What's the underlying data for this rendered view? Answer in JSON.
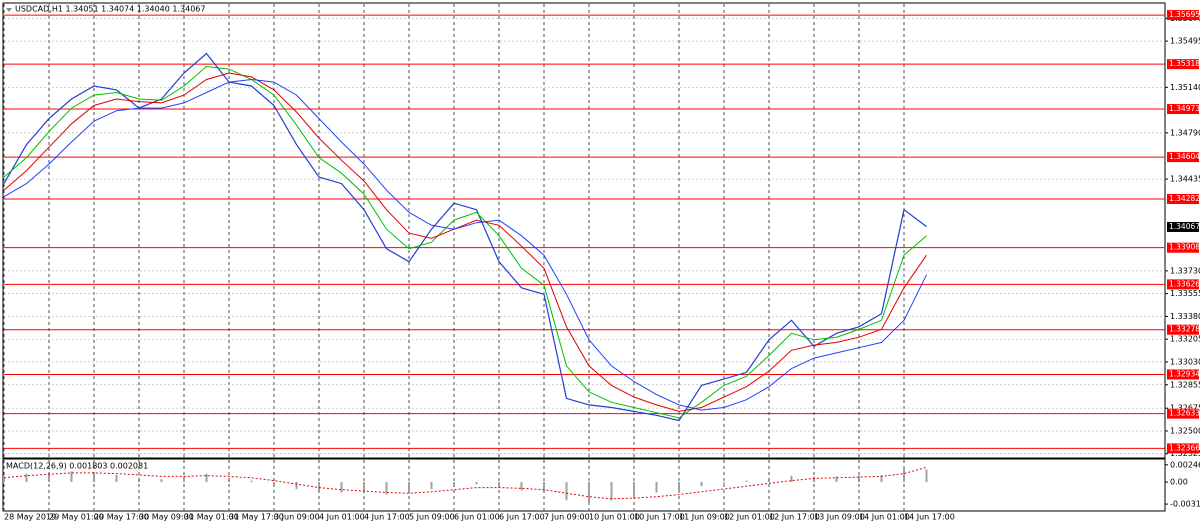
{
  "chart_data": [
    {
      "type": "line",
      "title": "USDCAD,H1  1.34051 1.34074 1.34040 1.34067",
      "categories": [
        "28 May 2019",
        null,
        "29 May 01:00",
        null,
        "29 May 17:00",
        null,
        "30 May 09:00",
        null,
        "31 May 01:00",
        null,
        "31 May 17:00",
        null,
        "3 Jun 09:00",
        null,
        "4 Jun 01:00",
        null,
        "4 Jun 17:00",
        null,
        "5 Jun 09:00",
        null,
        "6 Jun 01:00",
        null,
        "6 Jun 17:00",
        null,
        "7 Jun 09:00",
        null,
        "10 Jun 01:00",
        null,
        "10 Jun 17:00",
        null,
        "11 Jun 09:00",
        null,
        "12 Jun 01:00",
        null,
        "12 Jun 17:00",
        null,
        "13 Jun 09:00",
        null,
        "14 Jun 01:00",
        null,
        "14 Jun 17:00",
        null,
        null,
        null,
        null,
        null,
        null,
        null,
        null,
        null,
        null,
        null
      ],
      "series": [
        {
          "color": "#1f3fd4",
          "width": 1.2,
          "values": [
            1.344,
            1.347,
            1.349,
            1.3505,
            1.3515,
            1.3512,
            1.3498,
            1.3505,
            1.3525,
            1.354,
            1.3518,
            1.3515,
            1.35,
            1.347,
            1.3445,
            1.344,
            1.342,
            1.339,
            1.338,
            1.3405,
            1.3425,
            1.342,
            1.338,
            1.336,
            1.3355,
            1.3275,
            1.327,
            1.3268,
            1.3265,
            1.3262,
            1.3258,
            1.3285,
            1.329,
            1.3295,
            1.332,
            1.3335,
            1.3315,
            1.3325,
            1.333,
            1.334,
            1.342,
            1.3407,
            null,
            null,
            null,
            null,
            null,
            null,
            null,
            null,
            null,
            null
          ]
        },
        {
          "color": "#00c000",
          "width": 1,
          "values": [
            1.3445,
            1.346,
            1.348,
            1.3498,
            1.3508,
            1.351,
            1.3505,
            1.3504,
            1.3515,
            1.353,
            1.3528,
            1.352,
            1.3508,
            1.3485,
            1.346,
            1.3448,
            1.3432,
            1.3405,
            1.339,
            1.3395,
            1.3412,
            1.3418,
            1.34,
            1.3375,
            1.3362,
            1.33,
            1.328,
            1.3272,
            1.3268,
            1.3264,
            1.326,
            1.3272,
            1.3285,
            1.3292,
            1.3308,
            1.3325,
            1.332,
            1.3322,
            1.3328,
            1.3335,
            1.3385,
            1.34,
            null,
            null,
            null,
            null,
            null,
            null,
            null,
            null,
            null,
            null
          ]
        },
        {
          "color": "#e00000",
          "width": 1,
          "values": [
            1.3435,
            1.345,
            1.3468,
            1.3486,
            1.35,
            1.3505,
            1.3503,
            1.3502,
            1.3508,
            1.352,
            1.3525,
            1.3522,
            1.3512,
            1.3495,
            1.3475,
            1.3458,
            1.3442,
            1.342,
            1.3402,
            1.3398,
            1.3405,
            1.3412,
            1.3408,
            1.3392,
            1.3375,
            1.333,
            1.33,
            1.3285,
            1.3276,
            1.327,
            1.3265,
            1.3268,
            1.3276,
            1.3284,
            1.3296,
            1.3312,
            1.3316,
            1.3318,
            1.3322,
            1.3328,
            1.336,
            1.3385,
            null,
            null,
            null,
            null,
            null,
            null,
            null,
            null,
            null,
            null
          ]
        },
        {
          "color": "#2040ff",
          "width": 1,
          "values": [
            1.343,
            1.344,
            1.3455,
            1.3472,
            1.3488,
            1.3496,
            1.3498,
            1.3498,
            1.3502,
            1.351,
            1.3518,
            1.352,
            1.3518,
            1.3508,
            1.349,
            1.3472,
            1.3455,
            1.3435,
            1.3418,
            1.3408,
            1.3405,
            1.341,
            1.3412,
            1.34,
            1.3385,
            1.3355,
            1.332,
            1.33,
            1.3288,
            1.3278,
            1.327,
            1.3266,
            1.3268,
            1.3274,
            1.3284,
            1.3298,
            1.3306,
            1.331,
            1.3314,
            1.3318,
            1.3335,
            1.337,
            null,
            null,
            null,
            null,
            null,
            null,
            null,
            null,
            null,
            null
          ]
        }
      ],
      "ylim": [
        1.323,
        1.3578
      ],
      "yticks": [
        {
          "value": 1.3567,
          "label": "1.35670"
        },
        1.35495,
        {
          "value": 1.3514,
          "label": "1.35140"
        },
        {
          "value": 1.3479,
          "label": "1.34790"
        },
        1.34435,
        {
          "value": 1.3373,
          "label": "1.33730"
        },
        1.33555,
        {
          "value": 1.3338,
          "label": "1.33380"
        },
        1.33205,
        {
          "value": 1.3303,
          "label": "1.33030"
        },
        1.32855,
        1.32675,
        {
          "value": 1.325,
          "label": "1.32500"
        },
        1.32325
      ],
      "levels": [
        1.35695,
        1.35318,
        1.34973,
        1.34604,
        1.34282,
        1.33908,
        1.33626,
        1.33278,
        1.32934,
        1.32633,
        1.32366
      ],
      "level_color": "#ff0000",
      "last_price": 1.34067,
      "grid": true
    },
    {
      "type": "macd",
      "title": "MACD(12,26,9) 0.001803 0.002081",
      "histogram": {
        "color": "#a0a0a0",
        "values": [
          0.0008,
          0.0012,
          0.0014,
          0.0015,
          0.0012,
          0.001,
          0.0006,
          0.0004,
          0.0008,
          0.0012,
          0.0006,
          0.0002,
          -0.0004,
          -0.001,
          -0.0014,
          -0.0015,
          -0.0016,
          -0.0018,
          -0.0016,
          -0.001,
          -0.0004,
          -0.0003,
          -0.0008,
          -0.0012,
          -0.0013,
          -0.0026,
          -0.003,
          -0.0026,
          -0.002,
          -0.0015,
          -0.0012,
          -0.0006,
          -0.0002,
          0.0002,
          0.0006,
          0.0009,
          0.0008,
          0.0008,
          0.0009,
          0.001,
          0.002,
          0.0018,
          null,
          null,
          null,
          null,
          null,
          null,
          null,
          null,
          null,
          null
        ]
      },
      "signal": {
        "color": "#e00000",
        "values": [
          0.0006,
          0.0009,
          0.0011,
          0.0013,
          0.0013,
          0.0012,
          0.001,
          0.0008,
          0.0008,
          0.0009,
          0.0008,
          0.0006,
          0.0002,
          -0.0003,
          -0.0008,
          -0.0011,
          -0.0013,
          -0.0015,
          -0.0016,
          -0.0014,
          -0.0011,
          -0.0008,
          -0.0008,
          -0.0009,
          -0.0011,
          -0.0016,
          -0.0021,
          -0.0024,
          -0.0023,
          -0.0021,
          -0.0018,
          -0.0014,
          -0.001,
          -0.0006,
          -0.0002,
          0.0002,
          0.0005,
          0.0006,
          0.0007,
          0.0008,
          0.0012,
          0.0021,
          null,
          null,
          null,
          null,
          null,
          null,
          null,
          null,
          null,
          null
        ]
      },
      "ylim": [
        -0.004,
        0.00315
      ],
      "yticks": [
        0.002465,
        {
          "value": 0,
          "label": "0.00"
        },
        -0.003154
      ]
    }
  ]
}
